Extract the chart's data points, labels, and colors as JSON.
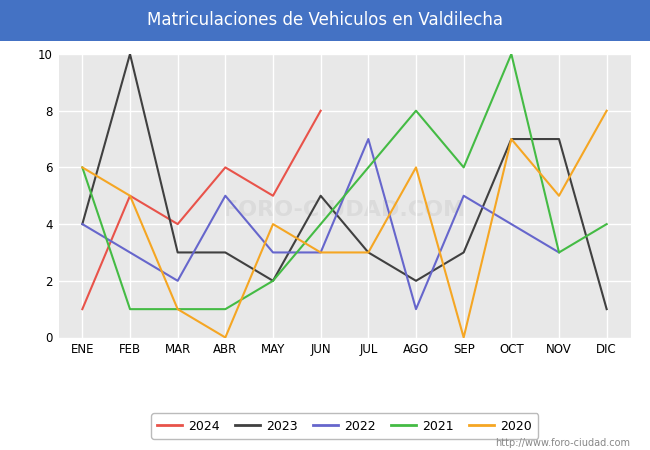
{
  "title": "Matriculaciones de Vehiculos en Valdilecha",
  "title_bgcolor": "#4472c4",
  "title_color": "white",
  "months": [
    "ENE",
    "FEB",
    "MAR",
    "ABR",
    "MAY",
    "JUN",
    "JUL",
    "AGO",
    "SEP",
    "OCT",
    "NOV",
    "DIC"
  ],
  "series": {
    "2024": {
      "color": "#e8534a",
      "data": [
        1,
        5,
        4,
        6,
        5,
        8,
        null,
        null,
        null,
        null,
        null,
        null
      ]
    },
    "2023": {
      "color": "#404040",
      "data": [
        4,
        10,
        3,
        3,
        2,
        5,
        3,
        2,
        3,
        7,
        7,
        1
      ]
    },
    "2022": {
      "color": "#6666cc",
      "data": [
        4,
        3,
        2,
        5,
        3,
        3,
        7,
        1,
        5,
        4,
        3,
        null
      ]
    },
    "2021": {
      "color": "#44bb44",
      "data": [
        6,
        1,
        1,
        1,
        2,
        4,
        6,
        8,
        6,
        10,
        3,
        4
      ]
    },
    "2020": {
      "color": "#f5a623",
      "data": [
        6,
        5,
        1,
        0,
        4,
        3,
        3,
        6,
        0,
        7,
        5,
        8
      ]
    }
  },
  "ylim": [
    0,
    10
  ],
  "yticks": [
    0,
    2,
    4,
    6,
    8,
    10
  ],
  "watermark": "http://www.foro-ciudad.com",
  "plot_bgcolor": "#e8e8e8",
  "grid_color": "white",
  "legend_order": [
    "2024",
    "2023",
    "2022",
    "2021",
    "2020"
  ]
}
